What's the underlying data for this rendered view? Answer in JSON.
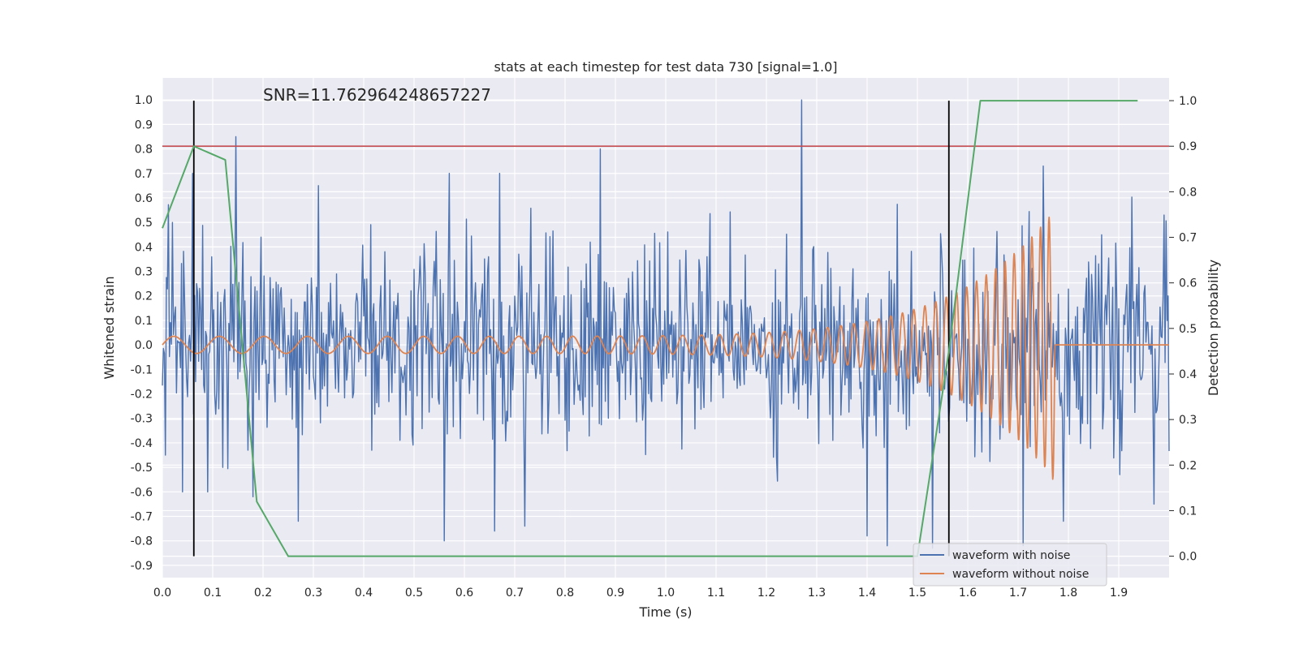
{
  "chart_data": {
    "type": "line",
    "title": "stats at each timestep for test data 730 [signal=1.0]",
    "xlabel": "Time (s)",
    "ylabel": "Whitened strain",
    "y2label": "Detection probability",
    "annotation": "SNR=11.762964248657227",
    "xlim": [
      0.0,
      2.0
    ],
    "ylim": [
      -0.95,
      1.09
    ],
    "y2lim": [
      -0.047,
      1.05
    ],
    "xticks": [
      "0.0",
      "0.1",
      "0.2",
      "0.3",
      "0.4",
      "0.5",
      "0.6",
      "0.7",
      "0.8",
      "0.9",
      "1.0",
      "1.1",
      "1.2",
      "1.3",
      "1.4",
      "1.5",
      "1.6",
      "1.7",
      "1.8",
      "1.9"
    ],
    "yticks": [
      "1.0",
      "0.9",
      "0.8",
      "0.7",
      "0.6",
      "0.5",
      "0.4",
      "0.3",
      "0.2",
      "0.1",
      "0.0",
      "-0.1",
      "-0.2",
      "-0.3",
      "-0.4",
      "-0.5",
      "-0.6",
      "-0.7",
      "-0.8",
      "-0.9"
    ],
    "y2ticks": [
      "1.0",
      "0.9",
      "0.8",
      "0.7",
      "0.6",
      "0.5",
      "0.4",
      "0.3",
      "0.2",
      "0.1",
      "0.0"
    ],
    "grid": true,
    "legend_position": "lower-right",
    "legend": [
      "waveform with noise",
      "waveform without noise"
    ],
    "colors": {
      "noise": "#4c72b0",
      "clean": "#dd8452",
      "probability": "#55a868",
      "threshold": "#c44e52",
      "markers": "#000000",
      "background": "#eaeaf2",
      "grid": "#ffffff"
    },
    "noise_series": {
      "name": "waveform with noise",
      "sample_step": 0.002,
      "t_range": [
        0.0,
        2.0
      ],
      "std": 0.2,
      "peaks": [
        [
          0.005,
          -0.45
        ],
        [
          0.02,
          0.5
        ],
        [
          0.04,
          -0.6
        ],
        [
          0.06,
          0.7
        ],
        [
          0.065,
          -0.15
        ],
        [
          0.09,
          -0.6
        ],
        [
          0.12,
          -0.5
        ],
        [
          0.145,
          0.85
        ],
        [
          0.17,
          -0.43
        ],
        [
          0.18,
          -0.62
        ],
        [
          0.195,
          0.44
        ],
        [
          0.27,
          -0.72
        ],
        [
          0.31,
          0.65
        ],
        [
          0.56,
          -0.8
        ],
        [
          0.57,
          0.7
        ],
        [
          0.66,
          -0.76
        ],
        [
          0.67,
          0.7
        ],
        [
          0.72,
          -0.74
        ],
        [
          0.87,
          0.8
        ],
        [
          1.27,
          1.0
        ],
        [
          1.4,
          -0.78
        ],
        [
          1.44,
          -0.82
        ],
        [
          1.53,
          -0.83
        ],
        [
          1.71,
          -0.82
        ],
        [
          1.75,
          0.73
        ],
        [
          1.79,
          -0.72
        ],
        [
          1.97,
          -0.65
        ],
        [
          1.99,
          0.53
        ]
      ]
    },
    "clean_series": {
      "name": "waveform without noise",
      "t_start": 0.0,
      "t_merger": 1.765,
      "t_end": 2.0,
      "f_start": 11,
      "f_end": 60,
      "amp_start": 0.035,
      "amp_peak": 0.53,
      "min_value": -0.55,
      "ringdown_level": 0.0
    },
    "probability_series": {
      "name": "detection probability",
      "x": [
        0.0,
        0.0625,
        0.125,
        0.1875,
        0.25,
        0.3125,
        0.375,
        0.4375,
        0.5,
        0.5625,
        0.625,
        0.6875,
        0.75,
        0.8125,
        0.875,
        0.9375,
        1.0,
        1.0625,
        1.125,
        1.1875,
        1.25,
        1.3125,
        1.375,
        1.4375,
        1.5,
        1.5625,
        1.625,
        1.6875,
        1.75,
        1.8125,
        1.875,
        1.9375
      ],
      "y": [
        0.72,
        0.9,
        0.87,
        0.12,
        0.0,
        0.0,
        0.0,
        0.0,
        0.0,
        0.0,
        0.0,
        0.0,
        0.0,
        0.0,
        0.0,
        0.0,
        0.0,
        0.0,
        0.0,
        0.0,
        0.0,
        0.0,
        0.0,
        0.0,
        0.0,
        0.45,
        1.0,
        1.0,
        1.0,
        1.0,
        1.0,
        1.0
      ]
    },
    "threshold_line": {
      "y2": 0.9
    },
    "vertical_markers": [
      {
        "x": 0.0625,
        "y2_range": [
          0.0,
          1.0
        ]
      },
      {
        "x": 1.5625,
        "y2_range": [
          0.0,
          1.0
        ]
      }
    ]
  }
}
